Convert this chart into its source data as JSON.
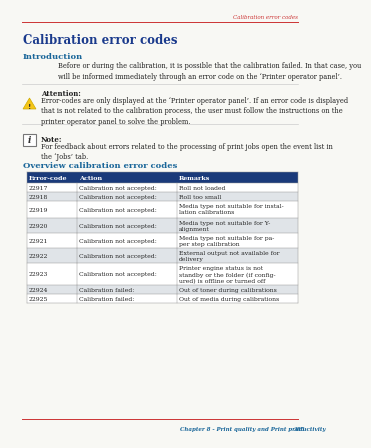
{
  "page_bg": "#f8f8f4",
  "header_text": "Calibration error codes",
  "header_color": "#cc3333",
  "title": "Calibration error codes",
  "title_color": "#1a3a8c",
  "section1_title": "Introduction",
  "section1_color": "#1a6699",
  "intro_text": "Before or during the calibration, it is possible that the calibration failed. In that case, you\nwill be informed immediately through an error code on the ‘Printer operator panel’.",
  "attention_label": "Attention:",
  "attention_text": "Error-codes are only displayed at the ‘Printer operator panel’. If an error code is displayed\nthat is not related to the calibration process, the user must follow the instructions on the\nprinter operator panel to solve the problem.",
  "note_label": "Note:",
  "note_text": "For feedback about errors related to the processing of print jobs open the event list in\nthe ‘Jobs’ tab.",
  "section2_title": "Overview calibration error codes",
  "section2_color": "#1a6699",
  "table_header": [
    "Error-code",
    "Action",
    "Remarks"
  ],
  "table_header_bg": "#1a3a7a",
  "table_header_color": "#ffffff",
  "table_rows": [
    [
      "22917",
      "Calibration not accepted:",
      "Roll not loaded"
    ],
    [
      "22918",
      "Calibration not accepted:",
      "Roll too small"
    ],
    [
      "22919",
      "Calibration not accepted:",
      "Media type not suitable for instal-\nlation calibrations"
    ],
    [
      "22920",
      "Calibration not accepted:",
      "Media type not suitable for Y-\nalignment"
    ],
    [
      "22921",
      "Calibration not accepted:",
      "Media type not suitable for pa-\nper step calibration"
    ],
    [
      "22922",
      "Calibration not accepted:",
      "External output not available for\ndelivery"
    ],
    [
      "22923",
      "Calibration not accepted:",
      "Printer engine status is not\nstandby or the folder (if config-\nured) is offline or turned off"
    ],
    [
      "22924",
      "Calibration failed:",
      "Out of toner during calibrations"
    ],
    [
      "22925",
      "Calibration failed:",
      "Out of media during calibrations"
    ]
  ],
  "table_row_alt": "#e0e4e8",
  "table_border": "#999999",
  "footer_text": "Chapter 8 - Print quality and Print productivity",
  "footer_page": "385",
  "footer_color": "#1a6699",
  "line_color": "#cc3333",
  "divider_color": "#cccccc"
}
